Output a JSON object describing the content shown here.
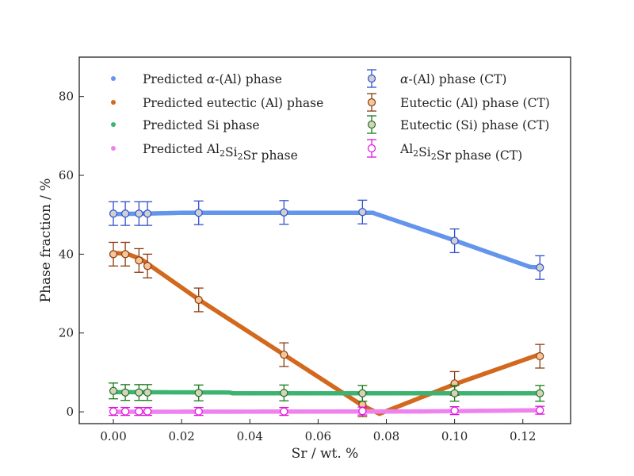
{
  "chart_data": {
    "type": "scatter",
    "xlabel": "Sr / wt. %",
    "ylabel": "Phase fraction / %",
    "xlim": [
      -0.01,
      0.134
    ],
    "ylim": [
      -3,
      90
    ],
    "xticks": [
      0.0,
      0.02,
      0.04,
      0.06,
      0.08,
      0.1,
      0.12
    ],
    "xtick_labels": [
      "0.00",
      "0.02",
      "0.04",
      "0.06",
      "0.08",
      "0.10",
      "0.12"
    ],
    "yticks": [
      0,
      20,
      40,
      60,
      80
    ],
    "ytick_labels": [
      "0",
      "20",
      "40",
      "60",
      "80"
    ],
    "grid": false,
    "legend_position": "top",
    "predicted_series": [
      {
        "name": "Predicted α-(Al) phase",
        "legend_parts": [
          {
            "t": "Predicted "
          },
          {
            "t": "α",
            "italic": true
          },
          {
            "t": "-(Al) phase"
          }
        ],
        "color": "#6495ed",
        "points": [
          [
            0.0,
            50.2
          ],
          [
            0.01,
            50.3
          ],
          [
            0.02,
            50.5
          ],
          [
            0.04,
            50.5
          ],
          [
            0.06,
            50.5
          ],
          [
            0.073,
            50.5
          ],
          [
            0.076,
            50.5
          ],
          [
            0.1,
            43.5
          ],
          [
            0.122,
            36.8
          ],
          [
            0.125,
            36.6
          ]
        ]
      },
      {
        "name": "Predicted eutectic (Al) phase",
        "legend_parts": [
          {
            "t": "Predicted eutectic (Al) phase"
          }
        ],
        "color": "#d2691e",
        "points": [
          [
            0.0,
            40.3
          ],
          [
            0.004,
            40.1
          ],
          [
            0.008,
            38.8
          ],
          [
            0.01,
            37.6
          ],
          [
            0.025,
            28.5
          ],
          [
            0.05,
            14.5
          ],
          [
            0.073,
            1.6
          ],
          [
            0.078,
            -0.5
          ],
          [
            0.1,
            7.0
          ],
          [
            0.125,
            14.6
          ]
        ]
      },
      {
        "name": "Predicted Si phase",
        "legend_parts": [
          {
            "t": "Predicted Si phase"
          }
        ],
        "color": "#3cb371",
        "points": [
          [
            0.0,
            5.0
          ],
          [
            0.034,
            4.9
          ],
          [
            0.035,
            4.7
          ],
          [
            0.125,
            4.7
          ]
        ]
      },
      {
        "name": "Predicted Al2Si2Sr phase",
        "legend_parts": [
          {
            "t": "Predicted Al"
          },
          {
            "t": "2",
            "sub": true
          },
          {
            "t": "Si"
          },
          {
            "t": "2",
            "sub": true
          },
          {
            "t": "Sr phase"
          }
        ],
        "color": "#ee82ee",
        "points": [
          [
            0.0,
            0.0
          ],
          [
            0.09,
            0.1
          ],
          [
            0.125,
            0.4
          ]
        ]
      }
    ],
    "measured_series": [
      {
        "name": "α-(Al) phase (CT)",
        "legend_parts": [
          {
            "t": "α",
            "italic": true
          },
          {
            "t": "-(Al) phase (CT)"
          }
        ],
        "edge": "#3050d0",
        "face": "#d0d0d0",
        "points": [
          {
            "x": 0.0,
            "y": 50.3,
            "err": 3.0
          },
          {
            "x": 0.0035,
            "y": 50.3,
            "err": 3.0
          },
          {
            "x": 0.0075,
            "y": 50.3,
            "err": 3.0
          },
          {
            "x": 0.01,
            "y": 50.3,
            "err": 3.0
          },
          {
            "x": 0.025,
            "y": 50.5,
            "err": 3.0
          },
          {
            "x": 0.05,
            "y": 50.6,
            "err": 3.0
          },
          {
            "x": 0.073,
            "y": 50.7,
            "err": 3.0
          },
          {
            "x": 0.1,
            "y": 43.4,
            "err": 3.0
          },
          {
            "x": 0.125,
            "y": 36.6,
            "err": 3.0
          }
        ]
      },
      {
        "name": "Eutectic (Al) phase (CT)",
        "legend_parts": [
          {
            "t": "Eutectic (Al) phase (CT)"
          }
        ],
        "edge": "#8b3a0e",
        "face": "#f2c79a",
        "points": [
          {
            "x": 0.0,
            "y": 40.0,
            "err": 3.0
          },
          {
            "x": 0.0035,
            "y": 40.0,
            "err": 3.0
          },
          {
            "x": 0.0075,
            "y": 38.4,
            "err": 3.0
          },
          {
            "x": 0.01,
            "y": 37.0,
            "err": 3.0
          },
          {
            "x": 0.025,
            "y": 28.4,
            "err": 3.0
          },
          {
            "x": 0.05,
            "y": 14.5,
            "err": 3.0
          },
          {
            "x": 0.073,
            "y": 1.8,
            "err": 3.0
          },
          {
            "x": 0.1,
            "y": 7.2,
            "err": 3.0
          },
          {
            "x": 0.125,
            "y": 14.1,
            "err": 3.0
          }
        ]
      },
      {
        "name": "Eutectic (Si) phase (CT)",
        "legend_parts": [
          {
            "t": "Eutectic (Si) phase (CT)"
          }
        ],
        "edge": "#1a7a1a",
        "face": "#d8d0c0",
        "points": [
          {
            "x": 0.0,
            "y": 5.3,
            "err": 2.0
          },
          {
            "x": 0.0035,
            "y": 4.9,
            "err": 2.0
          },
          {
            "x": 0.0075,
            "y": 4.9,
            "err": 2.0
          },
          {
            "x": 0.01,
            "y": 4.9,
            "err": 2.0
          },
          {
            "x": 0.025,
            "y": 4.8,
            "err": 2.0
          },
          {
            "x": 0.05,
            "y": 4.8,
            "err": 2.0
          },
          {
            "x": 0.073,
            "y": 4.7,
            "err": 2.0
          },
          {
            "x": 0.1,
            "y": 4.7,
            "err": 2.0
          },
          {
            "x": 0.125,
            "y": 4.7,
            "err": 2.0
          }
        ]
      },
      {
        "name": "Al2Si2Sr phase (CT)",
        "legend_parts": [
          {
            "t": "Al"
          },
          {
            "t": "2",
            "sub": true
          },
          {
            "t": "Si"
          },
          {
            "t": "2",
            "sub": true
          },
          {
            "t": "Sr phase (CT)"
          }
        ],
        "edge": "#e010e0",
        "face": "#ffffff",
        "points": [
          {
            "x": 0.0,
            "y": 0.1,
            "err": 1.0
          },
          {
            "x": 0.0035,
            "y": 0.1,
            "err": 1.0
          },
          {
            "x": 0.0075,
            "y": 0.1,
            "err": 1.0
          },
          {
            "x": 0.01,
            "y": 0.1,
            "err": 1.0
          },
          {
            "x": 0.025,
            "y": 0.1,
            "err": 1.0
          },
          {
            "x": 0.05,
            "y": 0.1,
            "err": 1.0
          },
          {
            "x": 0.073,
            "y": 0.2,
            "err": 1.0
          },
          {
            "x": 0.1,
            "y": 0.3,
            "err": 1.0
          },
          {
            "x": 0.125,
            "y": 0.4,
            "err": 1.0
          }
        ]
      }
    ]
  }
}
